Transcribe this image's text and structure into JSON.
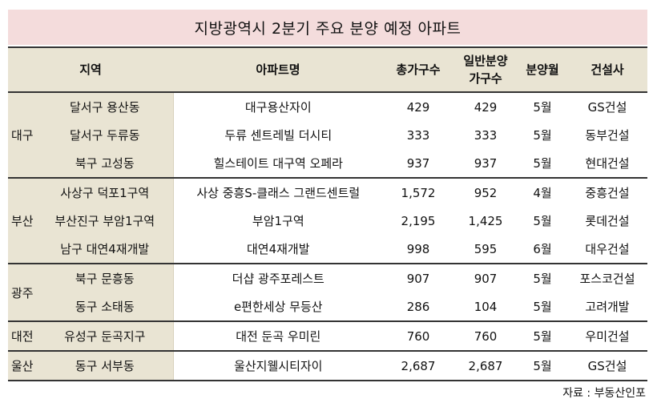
{
  "title": "지방광역시 2분기 주요 분양 예정 아파트",
  "headers": {
    "area": "지역",
    "apt": "아파트명",
    "total": "총가구수",
    "general_line1": "일반분양",
    "general_line2": "가구수",
    "month": "분양월",
    "builder": "건설사"
  },
  "groups": [
    {
      "region": "대구",
      "rows": [
        {
          "area": "달서구 용산동",
          "apt": "대구용산자이",
          "total": "429",
          "general": "429",
          "month": "5월",
          "builder": "GS건설"
        },
        {
          "area": "달서구 두류동",
          "apt": "두류 센트레빌 더시티",
          "total": "333",
          "general": "333",
          "month": "5월",
          "builder": "동부건설"
        },
        {
          "area": "북구 고성동",
          "apt": "힐스테이트 대구역 오페라",
          "total": "937",
          "general": "937",
          "month": "5월",
          "builder": "현대건설"
        }
      ]
    },
    {
      "region": "부산",
      "rows": [
        {
          "area": "사상구 덕포1구역",
          "apt": "사상 중흥S-클래스 그랜드센트럴",
          "total": "1,572",
          "general": "952",
          "month": "4월",
          "builder": "중흥건설"
        },
        {
          "area": "부산진구 부암1구역",
          "apt": "부암1구역",
          "total": "2,195",
          "general": "1,425",
          "month": "5월",
          "builder": "롯데건설"
        },
        {
          "area": "남구 대연4재개발",
          "apt": "대연4재개발",
          "total": "998",
          "general": "595",
          "month": "6월",
          "builder": "대우건설"
        }
      ]
    },
    {
      "region": "광주",
      "rows": [
        {
          "area": "북구 문흥동",
          "apt": "더샵 광주포레스트",
          "total": "907",
          "general": "907",
          "month": "5월",
          "builder": "포스코건설"
        },
        {
          "area": "동구 소태동",
          "apt": "e편한세상 무등산",
          "total": "286",
          "general": "104",
          "month": "5월",
          "builder": "고려개발"
        }
      ]
    },
    {
      "region": "대전",
      "rows": [
        {
          "area": "유성구 둔곡지구",
          "apt": "대전 둔곡 우미린",
          "total": "760",
          "general": "760",
          "month": "5월",
          "builder": "우미건설"
        }
      ]
    },
    {
      "region": "울산",
      "rows": [
        {
          "area": "동구 서부동",
          "apt": "울산지웰시티자이",
          "total": "2,687",
          "general": "2,687",
          "month": "5월",
          "builder": "GS건설"
        }
      ]
    }
  ],
  "source": "자료 : 부동산인포"
}
